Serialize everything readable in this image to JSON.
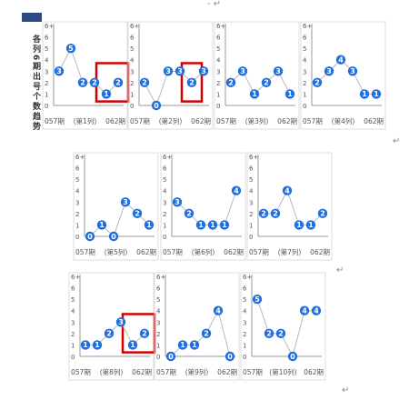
{
  "side_label": "各列6期出号个数趋势",
  "return_mark": "↵",
  "top_mark": "- ↵",
  "y_axis_ticks": [
    "6+",
    "6",
    "5",
    "4",
    "3",
    "2",
    "1",
    "0"
  ],
  "colors": {
    "marker": "#1f6fe0",
    "line": "#b9b9b9",
    "highlight": "#d40000",
    "axis": "#999999",
    "label": "#555555"
  },
  "chart_data": [
    {
      "type": "line",
      "x": [
        "057期",
        "058期",
        "059期",
        "060期",
        "061期",
        "062期"
      ],
      "values": [
        3,
        5,
        2,
        2,
        1,
        2
      ],
      "x_labels": [
        "057期",
        "(第1列)",
        "062期"
      ],
      "ylim": [
        0,
        7
      ],
      "highlight_range": [
        4,
        5
      ]
    },
    {
      "type": "line",
      "x": [
        "057期",
        "058期",
        "059期",
        "060期",
        "061期",
        "062期"
      ],
      "values": [
        2,
        0,
        3,
        3,
        2,
        3
      ],
      "x_labels": [
        "057期",
        "(第2列)",
        "062期"
      ],
      "ylim": [
        0,
        7
      ],
      "highlight_range": [
        4,
        4
      ]
    },
    {
      "type": "line",
      "x": [
        "057期",
        "058期",
        "059期",
        "060期",
        "061期",
        "062期"
      ],
      "values": [
        2,
        3,
        1,
        2,
        3,
        1
      ],
      "x_labels": [
        "057期",
        "(第3列)",
        "062期"
      ],
      "ylim": [
        0,
        7
      ]
    },
    {
      "type": "line",
      "x": [
        "057期",
        "058期",
        "059期",
        "060期",
        "061期",
        "062期"
      ],
      "values": [
        2,
        3,
        4,
        3,
        1,
        1
      ],
      "x_labels": [
        "057期",
        "(第4列)",
        "062期"
      ],
      "ylim": [
        0,
        7
      ]
    },
    {
      "type": "line",
      "x": [
        "057期",
        "058期",
        "059期",
        "060期",
        "061期",
        "062期"
      ],
      "values": [
        0,
        1,
        0,
        3,
        2,
        1
      ],
      "x_labels": [
        "057期",
        "(第5列)",
        "062期"
      ],
      "ylim": [
        0,
        7
      ]
    },
    {
      "type": "line",
      "x": [
        "057期",
        "058期",
        "059期",
        "060期",
        "061期",
        "062期"
      ],
      "values": [
        3,
        2,
        1,
        1,
        1,
        4
      ],
      "x_labels": [
        "057期",
        "(第6列)",
        "062期"
      ],
      "ylim": [
        0,
        7
      ]
    },
    {
      "type": "line",
      "x": [
        "057期",
        "058期",
        "059期",
        "060期",
        "061期",
        "062期"
      ],
      "values": [
        2,
        2,
        4,
        1,
        1,
        2
      ],
      "x_labels": [
        "057期",
        "(第7列)",
        "062期"
      ],
      "ylim": [
        0,
        7
      ]
    },
    {
      "type": "line",
      "x": [
        "057期",
        "058期",
        "059期",
        "060期",
        "061期",
        "062期"
      ],
      "values": [
        1,
        1,
        2,
        3,
        1,
        2
      ],
      "x_labels": [
        "057期",
        "(第8列)",
        "062期"
      ],
      "ylim": [
        0,
        7
      ],
      "highlight_range": [
        4,
        5
      ]
    },
    {
      "type": "line",
      "x": [
        "057期",
        "058期",
        "059期",
        "060期",
        "061期",
        "062期"
      ],
      "values": [
        0,
        1,
        1,
        2,
        4,
        0
      ],
      "x_labels": [
        "057期",
        "(第9列)",
        "062期"
      ],
      "ylim": [
        0,
        7
      ]
    },
    {
      "type": "line",
      "x": [
        "057期",
        "058期",
        "059期",
        "060期",
        "061期",
        "062期"
      ],
      "values": [
        5,
        2,
        2,
        0,
        4,
        4
      ],
      "x_labels": [
        "057期",
        "(第10列)",
        "062期"
      ],
      "ylim": [
        0,
        7
      ]
    }
  ]
}
